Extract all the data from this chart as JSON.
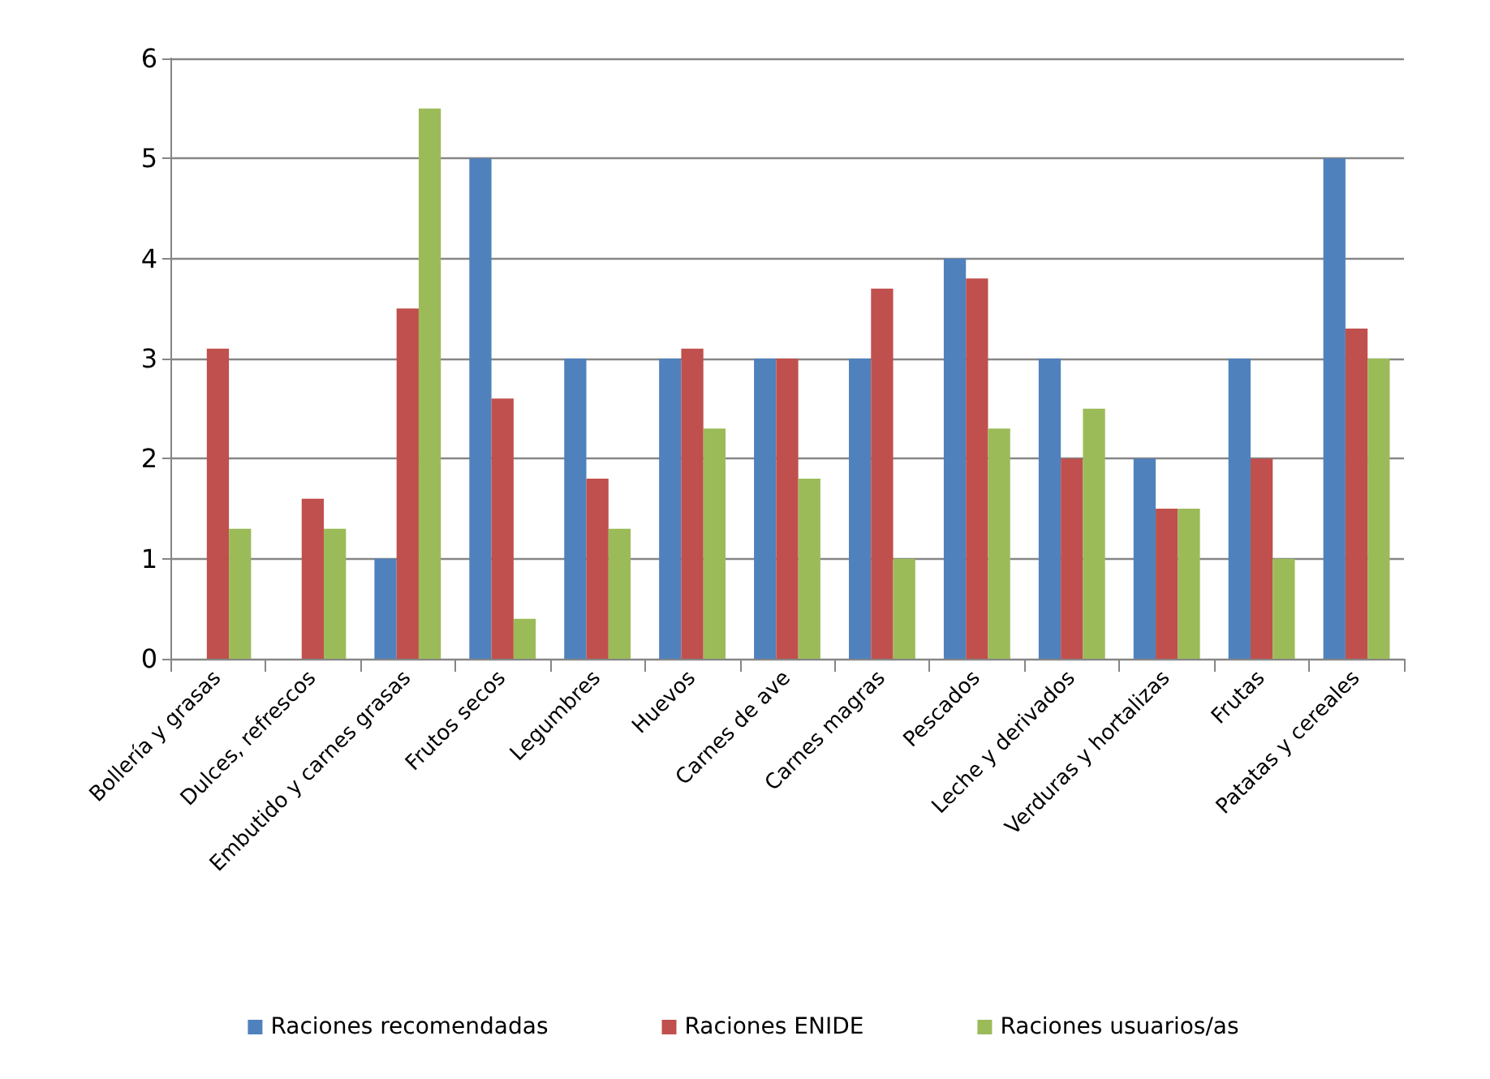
{
  "chart_data": {
    "type": "bar",
    "categories": [
      "Bollería y grasas",
      "Dulces, refrescos",
      "Embutido y carnes grasas",
      "Frutos secos",
      "Legumbres",
      "Huevos",
      "Carnes de ave",
      "Carnes magras",
      "Pescados",
      "Leche y derivados",
      "Verduras y hortalizas",
      "Frutas",
      "Patatas y cereales"
    ],
    "series": [
      {
        "name": "Raciones recomendadas",
        "color": "#4f81bd",
        "values": [
          null,
          null,
          1,
          5,
          3,
          3,
          3,
          3,
          4,
          3,
          2,
          3,
          5
        ]
      },
      {
        "name": "Raciones ENIDE",
        "color": "#c0504d",
        "values": [
          3.1,
          1.6,
          3.5,
          2.6,
          1.8,
          3.1,
          3.0,
          3.7,
          3.8,
          2.0,
          1.5,
          2.0,
          3.3
        ]
      },
      {
        "name": "Raciones usuarios/as",
        "color": "#9bbb59",
        "values": [
          1.3,
          1.3,
          5.5,
          0.4,
          1.3,
          2.3,
          1.8,
          1.0,
          2.3,
          2.5,
          1.5,
          1.0,
          3.0
        ]
      }
    ],
    "ylim": [
      0,
      6
    ],
    "yticks": [
      0,
      1,
      2,
      3,
      4,
      5,
      6
    ],
    "grid": "y",
    "legend": "bottom"
  }
}
